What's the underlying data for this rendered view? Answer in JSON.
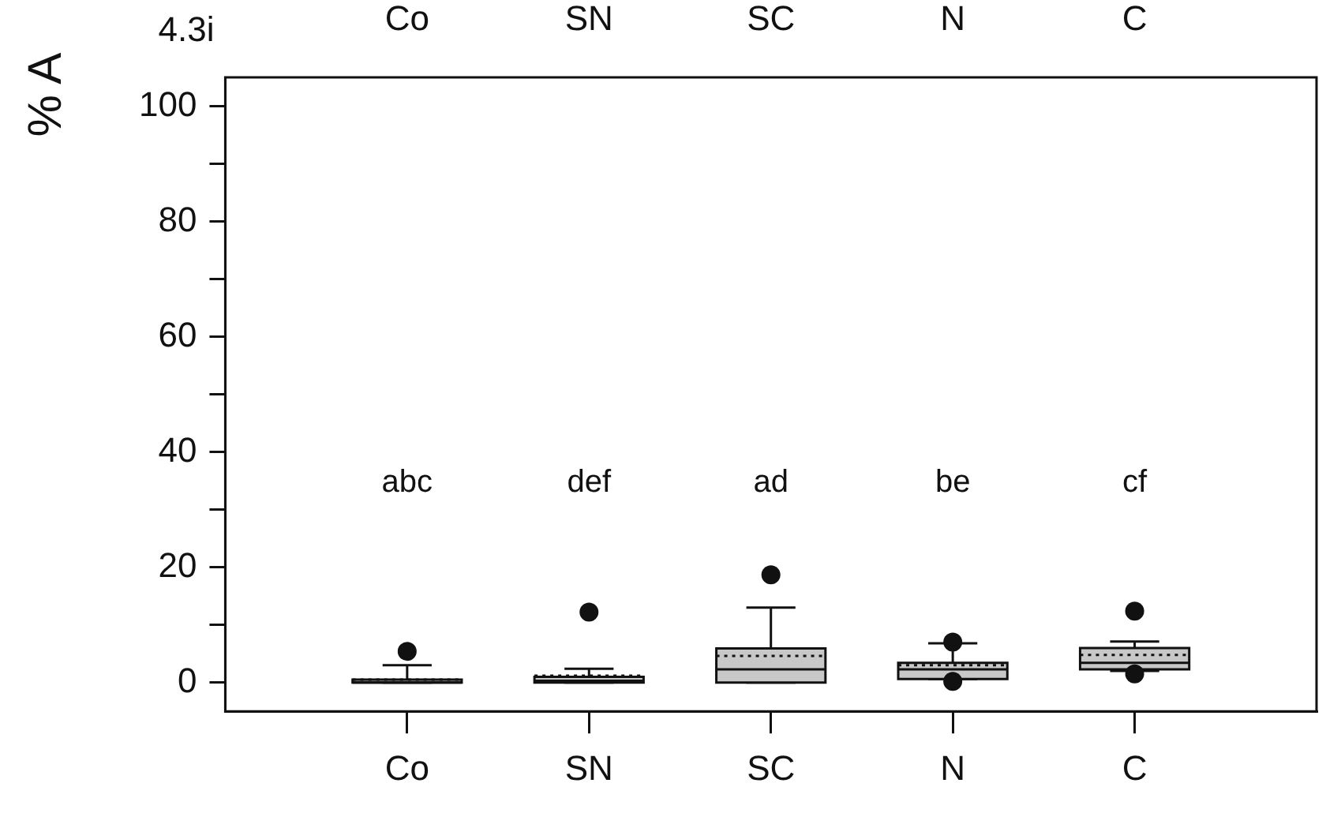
{
  "chart_data": {
    "type": "box",
    "ylabel": "% A",
    "categories": [
      "Co",
      "SN",
      "SC",
      "N",
      "C"
    ],
    "color": "#c8c8c8",
    "boxes": [
      {
        "low": 0,
        "q1": 0,
        "median": 0,
        "q3": 0.5,
        "high": 3,
        "mean": 0.5,
        "outliers": [
          5.4
        ]
      },
      {
        "low": 0,
        "q1": 0,
        "median": 0.3,
        "q3": 1,
        "high": 2.4,
        "mean": 1.2,
        "outliers": [
          12.2
        ]
      },
      {
        "low": 0,
        "q1": 0,
        "median": 2.3,
        "q3": 5.9,
        "high": 13,
        "mean": 4.6,
        "outliers": [
          18.7
        ]
      },
      {
        "low": 0.6,
        "q1": 0.6,
        "median": 2.3,
        "q3": 3.4,
        "high": 6.8,
        "mean": 3,
        "outliers": [
          7,
          0.2
        ]
      },
      {
        "low": 2,
        "q1": 2.3,
        "median": 3.4,
        "q3": 6,
        "high": 7.1,
        "mean": 4.8,
        "outliers": [
          12.4,
          1.5
        ]
      }
    ],
    "ylim": [
      -5,
      105
    ],
    "yticks": [
      0,
      {
        "value": 10,
        "label": null
      },
      20,
      {
        "value": 30,
        "label": null
      },
      40,
      {
        "value": 50,
        "label": null
      },
      60,
      {
        "value": 70,
        "label": null
      },
      80,
      {
        "value": 90,
        "label": null
      },
      100
    ],
    "grid": false,
    "legend": false,
    "annotations": [
      "4.3i",
      "abc",
      "def",
      "ad",
      "be",
      "cf",
      "Co",
      "SN",
      "SC",
      "N",
      "C"
    ]
  }
}
